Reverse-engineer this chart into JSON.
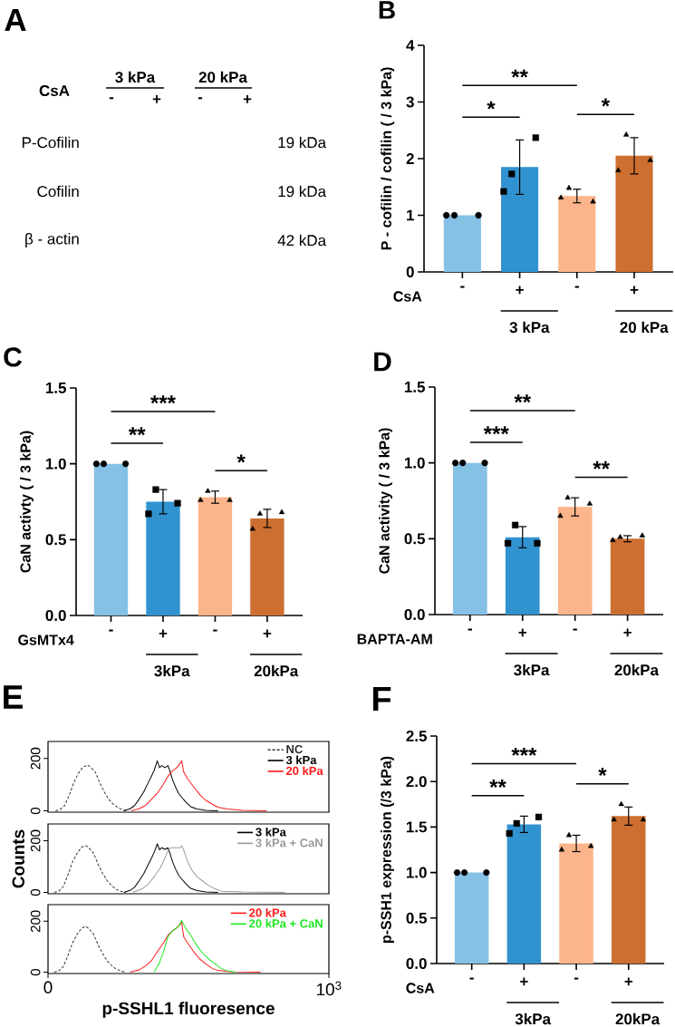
{
  "chart_data": [
    {
      "type": "other",
      "title": "A",
      "annotations": [
        "CsA",
        "3 kPa",
        "20 kPa",
        "-",
        "+",
        "-",
        "+",
        "P-Cofilin",
        "Cofilin",
        "β - actin",
        "19 kDa",
        "19 kDa",
        "42 kDa"
      ]
    },
    {
      "type": "bar",
      "title": "B",
      "ylabel": "P - cofilin / cofilin ( / 3 kPa)",
      "categories": [
        "-",
        "+",
        "-",
        "+"
      ],
      "ylim": [
        0,
        4
      ],
      "yticks": [
        0,
        1,
        2,
        3,
        4
      ],
      "series": [
        {
          "type": "bar",
          "values": [
            1.0,
            1.85,
            1.34,
            2.05
          ],
          "colors": [
            "#85c1e5",
            "#3192d0",
            "#fcb48a",
            "#cd6f31"
          ],
          "errors": [
            null,
            0.48,
            0.12,
            0.32
          ]
        },
        {
          "type": "scatter",
          "values": [
            1,
            null,
            null,
            null
          ],
          "color": "#000000",
          "marker": "circle"
        },
        {
          "type": "scatter",
          "values": [
            1,
            null,
            null,
            null
          ],
          "color": "#000000",
          "marker": "circle"
        },
        {
          "type": "scatter",
          "values": [
            1,
            null,
            null,
            null
          ],
          "color": "#000000",
          "marker": "circle"
        },
        {
          "type": "scatter",
          "values": [
            null,
            1.42,
            null,
            null
          ],
          "color": "#000000",
          "marker": "square"
        },
        {
          "type": "scatter",
          "values": [
            null,
            2.37,
            null,
            null
          ],
          "color": "#000000",
          "marker": "square"
        },
        {
          "type": "scatter",
          "values": [
            null,
            1.73,
            null,
            null
          ],
          "color": "#000000",
          "marker": "square"
        },
        {
          "type": "scatter",
          "values": [
            null,
            null,
            1.31,
            null
          ],
          "color": "#000000",
          "marker": "triangle"
        },
        {
          "type": "scatter",
          "values": [
            null,
            null,
            1.24,
            null
          ],
          "color": "#000000",
          "marker": "triangle"
        },
        {
          "type": "scatter",
          "values": [
            null,
            null,
            1.48,
            null
          ],
          "color": "#000000",
          "marker": "triangle"
        },
        {
          "type": "scatter",
          "values": [
            null,
            null,
            null,
            1.79
          ],
          "color": "#000000",
          "marker": "triangle"
        },
        {
          "type": "scatter",
          "values": [
            null,
            null,
            null,
            1.97
          ],
          "color": "#000000",
          "marker": "triangle"
        },
        {
          "type": "scatter",
          "values": [
            null,
            null,
            null,
            2.42
          ],
          "color": "#000000",
          "marker": "triangle"
        }
      ],
      "annotations": [
        "CsA",
        "3 kPa",
        "20 kPa",
        "**",
        "*",
        "*"
      ]
    },
    {
      "type": "bar",
      "title": "C",
      "ylabel": "CaN activty ( / 3 kPa)",
      "categories": [
        "-",
        "+",
        "-",
        "+"
      ],
      "ylim": [
        0,
        1.5
      ],
      "yticks": [
        {
          "value": 0,
          "label": "0.0"
        },
        0.5,
        {
          "value": 1,
          "label": "1.0"
        },
        1.5
      ],
      "series": [
        {
          "type": "bar",
          "values": [
            1.0,
            0.75,
            0.78,
            0.64
          ],
          "colors": [
            "#85c1e5",
            "#3192d0",
            "#fcb48a",
            "#cd6f31"
          ],
          "errors": [
            null,
            0.08,
            0.04,
            0.06
          ]
        },
        {
          "type": "scatter",
          "values": [
            1,
            null,
            null,
            null
          ],
          "color": "#000000",
          "marker": "circle"
        },
        {
          "type": "scatter",
          "values": [
            1,
            null,
            null,
            null
          ],
          "color": "#000000",
          "marker": "circle"
        },
        {
          "type": "scatter",
          "values": [
            1,
            null,
            null,
            null
          ],
          "color": "#000000",
          "marker": "circle"
        },
        {
          "type": "scatter",
          "values": [
            null,
            0.67,
            null,
            null
          ],
          "color": "#000000",
          "marker": "square"
        },
        {
          "type": "scatter",
          "values": [
            null,
            0.74,
            null,
            null
          ],
          "color": "#000000",
          "marker": "square"
        },
        {
          "type": "scatter",
          "values": [
            null,
            0.83,
            null,
            null
          ],
          "color": "#000000",
          "marker": "square"
        },
        {
          "type": "scatter",
          "values": [
            null,
            null,
            0.76,
            null
          ],
          "color": "#000000",
          "marker": "triangle"
        },
        {
          "type": "scatter",
          "values": [
            null,
            null,
            0.76,
            null
          ],
          "color": "#000000",
          "marker": "triangle"
        },
        {
          "type": "scatter",
          "values": [
            null,
            null,
            0.82,
            null
          ],
          "color": "#000000",
          "marker": "triangle"
        },
        {
          "type": "scatter",
          "values": [
            null,
            null,
            null,
            0.57
          ],
          "color": "#000000",
          "marker": "triangle"
        },
        {
          "type": "scatter",
          "values": [
            null,
            null,
            null,
            0.68
          ],
          "color": "#000000",
          "marker": "triangle"
        },
        {
          "type": "scatter",
          "values": [
            null,
            null,
            null,
            0.67
          ],
          "color": "#000000",
          "marker": "triangle"
        }
      ],
      "annotations": [
        "GsMTx4",
        "3kPa",
        "20kPa",
        "***",
        "**",
        "*"
      ]
    },
    {
      "type": "bar",
      "title": "D",
      "ylabel": "CaN activity ( / 3 kPa)",
      "categories": [
        "-",
        "+",
        "-",
        "+"
      ],
      "ylim": [
        0,
        1.5
      ],
      "yticks": [
        {
          "value": 0,
          "label": "0.0"
        },
        0.5,
        {
          "value": 1,
          "label": "1.0"
        },
        1.5
      ],
      "series": [
        {
          "type": "bar",
          "values": [
            1.0,
            0.51,
            0.71,
            0.5
          ],
          "colors": [
            "#85c1e5",
            "#3192d0",
            "#fcb48a",
            "#cd6f31"
          ],
          "errors": [
            null,
            0.07,
            0.06,
            0.02
          ]
        },
        {
          "type": "scatter",
          "values": [
            1,
            null,
            null,
            null
          ],
          "color": "#000000",
          "marker": "circle"
        },
        {
          "type": "scatter",
          "values": [
            1,
            null,
            null,
            null
          ],
          "color": "#000000",
          "marker": "circle"
        },
        {
          "type": "scatter",
          "values": [
            1,
            null,
            null,
            null
          ],
          "color": "#000000",
          "marker": "circle"
        },
        {
          "type": "scatter",
          "values": [
            null,
            0.47,
            null,
            null
          ],
          "color": "#000000",
          "marker": "square"
        },
        {
          "type": "scatter",
          "values": [
            null,
            0.47,
            null,
            null
          ],
          "color": "#000000",
          "marker": "square"
        },
        {
          "type": "scatter",
          "values": [
            null,
            0.59,
            null,
            null
          ],
          "color": "#000000",
          "marker": "square"
        },
        {
          "type": "scatter",
          "values": [
            null,
            null,
            0.65,
            null
          ],
          "color": "#000000",
          "marker": "triangle"
        },
        {
          "type": "scatter",
          "values": [
            null,
            null,
            0.73,
            null
          ],
          "color": "#000000",
          "marker": "triangle"
        },
        {
          "type": "scatter",
          "values": [
            null,
            null,
            0.77,
            null
          ],
          "color": "#000000",
          "marker": "triangle"
        },
        {
          "type": "scatter",
          "values": [
            null,
            null,
            null,
            0.49
          ],
          "color": "#000000",
          "marker": "triangle"
        },
        {
          "type": "scatter",
          "values": [
            null,
            null,
            null,
            0.52
          ],
          "color": "#000000",
          "marker": "triangle"
        },
        {
          "type": "scatter",
          "values": [
            null,
            null,
            null,
            0.51
          ],
          "color": "#000000",
          "marker": "triangle"
        }
      ],
      "annotations": [
        "BAPTA-AM",
        "3kPa",
        "20kPa",
        "**",
        "***",
        "**"
      ]
    },
    {
      "type": "line",
      "title": "E",
      "xlim": [
        0,
        1000
      ],
      "ylim": [
        -5,
        265
      ],
      "yticks": [
        0,
        200
      ],
      "tick_labels": "y",
      "legend": "top right",
      "series": [
        {
          "name": "NC",
          "color": "#333333",
          "line_style": "dashed",
          "x": [
            27,
            43,
            59,
            76,
            92,
            108,
            124,
            141,
            151,
            168,
            184,
            200,
            216,
            232,
            249,
            265,
            281
          ],
          "values": [
            0,
            5,
            20,
            61,
            108,
            143,
            167,
            175,
            167,
            149,
            108,
            73,
            44,
            26,
            12,
            5,
            0
          ]
        },
        {
          "name": "3 kPa",
          "color": "#000000",
          "x": [
            270,
            292,
            308,
            324,
            341,
            357,
            368,
            378,
            389,
            397,
            405,
            416,
            427,
            435,
            443,
            454,
            465,
            476,
            492,
            508,
            530,
            562,
            605
          ],
          "values": [
            0,
            8,
            20,
            44,
            73,
            108,
            132,
            155,
            191,
            165,
            173,
            165,
            173,
            149,
            120,
            91,
            67,
            52,
            32,
            16,
            7,
            2,
            0
          ]
        },
        {
          "name": "20 kPa",
          "color": "#ff1a1a",
          "x": [
            297,
            324,
            346,
            368,
            389,
            411,
            427,
            443,
            459,
            476,
            483,
            497,
            519,
            541,
            562,
            584,
            605,
            638,
            692,
            778
          ],
          "values": [
            0,
            8,
            20,
            44,
            67,
            102,
            132,
            153,
            165,
            191,
            149,
            122,
            91,
            61,
            40,
            26,
            14,
            7,
            2,
            0
          ]
        }
      ]
    },
    {
      "type": "line",
      "ylabel": "Counts",
      "xlim": [
        0,
        1000
      ],
      "ylim": [
        -5,
        265
      ],
      "yticks": [
        0,
        200
      ],
      "tick_labels": "y",
      "legend": "top right",
      "series": [
        {
          "color": "#333333",
          "line_style": "dashed",
          "x": [
            22,
            38,
            54,
            70,
            86,
            103,
            119,
            135,
            146,
            162,
            178,
            194,
            211,
            227,
            243,
            259,
            276
          ],
          "values": [
            0,
            5,
            22,
            65,
            115,
            150,
            175,
            181,
            172,
            152,
            110,
            75,
            45,
            26,
            12,
            5,
            0
          ]
        },
        {
          "name": "3 kPa",
          "color": "#000000",
          "x": [
            270,
            292,
            308,
            324,
            341,
            357,
            368,
            378,
            389,
            397,
            405,
            416,
            427,
            435,
            443,
            454,
            465,
            476,
            492,
            508,
            530,
            562,
            605
          ],
          "values": [
            0,
            8,
            20,
            44,
            73,
            108,
            132,
            155,
            188,
            165,
            173,
            167,
            173,
            149,
            120,
            91,
            67,
            52,
            32,
            16,
            7,
            2,
            0
          ]
        },
        {
          "name": "3 kPa + CaN",
          "color": "#9a9a9a",
          "x": [
            303,
            335,
            357,
            378,
            400,
            416,
            427,
            438,
            454,
            470,
            476,
            484,
            497,
            513,
            530,
            551,
            573,
            595,
            616,
            692,
            843
          ],
          "values": [
            0,
            14,
            32,
            61,
            96,
            132,
            161,
            173,
            173,
            173,
            181,
            161,
            120,
            85,
            61,
            44,
            26,
            14,
            5,
            2,
            0
          ]
        }
      ]
    },
    {
      "type": "line",
      "xlabel": "p-SSHL1 fluoresence",
      "xlim": [
        0,
        1000
      ],
      "xticks": [
        0,
        {
          "value": 1000,
          "label": "10$^{3}$"
        }
      ],
      "ylim": [
        -5,
        265
      ],
      "yticks": [
        0,
        200
      ],
      "legend": "top right",
      "series": [
        {
          "color": "#333333",
          "line_style": "dashed",
          "x": [
            22,
            38,
            54,
            70,
            86,
            103,
            119,
            135,
            146,
            162,
            178,
            194,
            211,
            227,
            243,
            259,
            276
          ],
          "values": [
            0,
            5,
            21,
            63,
            112,
            148,
            172,
            180,
            170,
            150,
            108,
            74,
            44,
            26,
            12,
            5,
            0
          ]
        },
        {
          "name": "20 kPa",
          "color": "#ff1a1a",
          "x": [
            292,
            324,
            346,
            368,
            389,
            411,
            427,
            443,
            459,
            476,
            483,
            497,
            519,
            541,
            562,
            584,
            605,
            649,
            757
          ],
          "values": [
            0,
            9,
            24,
            45,
            80,
            115,
            145,
            162,
            174,
            195,
            139,
            115,
            80,
            51,
            33,
            15,
            7,
            2,
            0
          ]
        },
        {
          "name": "20 kPa + CaN",
          "color": "#1ee61e",
          "x": [
            378,
            395,
            411,
            427,
            443,
            465,
            476,
            489,
            508,
            530,
            551,
            573,
            595,
            616,
            638,
            670
          ],
          "values": [
            0,
            33,
            80,
            139,
            162,
            180,
            203,
            174,
            145,
            104,
            74,
            51,
            33,
            15,
            6,
            0
          ]
        }
      ]
    },
    {
      "type": "bar",
      "title": "F",
      "ylabel": "p-SSH1 expression (/3 kPa)",
      "categories": [
        "-",
        "+",
        "-",
        "+"
      ],
      "ylim": [
        0,
        2.5
      ],
      "yticks": [
        {
          "value": 0,
          "label": "0.0"
        },
        0.5,
        {
          "value": 1,
          "label": "1.0"
        },
        1.5,
        {
          "value": 2,
          "label": "2.0"
        },
        2.5
      ],
      "series": [
        {
          "type": "bar",
          "values": [
            1.0,
            1.53,
            1.32,
            1.62
          ],
          "colors": [
            "#85c1e5",
            "#3192d0",
            "#fcb48a",
            "#cd6f31"
          ],
          "errors": [
            null,
            0.09,
            0.09,
            0.1
          ]
        },
        {
          "type": "scatter",
          "values": [
            1,
            null,
            null,
            null
          ],
          "color": "#000000",
          "marker": "circle"
        },
        {
          "type": "scatter",
          "values": [
            1,
            null,
            null,
            null
          ],
          "color": "#000000",
          "marker": "circle"
        },
        {
          "type": "scatter",
          "values": [
            1,
            null,
            null,
            null
          ],
          "color": "#000000",
          "marker": "circle"
        },
        {
          "type": "scatter",
          "values": [
            null,
            1.43,
            null,
            null
          ],
          "color": "#000000",
          "marker": "square"
        },
        {
          "type": "scatter",
          "values": [
            null,
            1.61,
            null,
            null
          ],
          "color": "#000000",
          "marker": "square"
        },
        {
          "type": "scatter",
          "values": [
            null,
            1.54,
            null,
            null
          ],
          "color": "#000000",
          "marker": "square"
        },
        {
          "type": "scatter",
          "values": [
            null,
            null,
            1.25,
            null
          ],
          "color": "#000000",
          "marker": "triangle"
        },
        {
          "type": "scatter",
          "values": [
            null,
            null,
            1.29,
            null
          ],
          "color": "#000000",
          "marker": "triangle"
        },
        {
          "type": "scatter",
          "values": [
            null,
            null,
            1.41,
            null
          ],
          "color": "#000000",
          "marker": "triangle"
        },
        {
          "type": "scatter",
          "values": [
            null,
            null,
            null,
            1.58
          ],
          "color": "#000000",
          "marker": "triangle"
        },
        {
          "type": "scatter",
          "values": [
            null,
            null,
            null,
            1.58
          ],
          "color": "#000000",
          "marker": "triangle"
        },
        {
          "type": "scatter",
          "values": [
            null,
            null,
            null,
            1.75
          ],
          "color": "#000000",
          "marker": "triangle"
        }
      ],
      "annotations": [
        "CsA",
        "3kPa",
        "20kPa",
        "***",
        "**",
        "*"
      ]
    }
  ]
}
